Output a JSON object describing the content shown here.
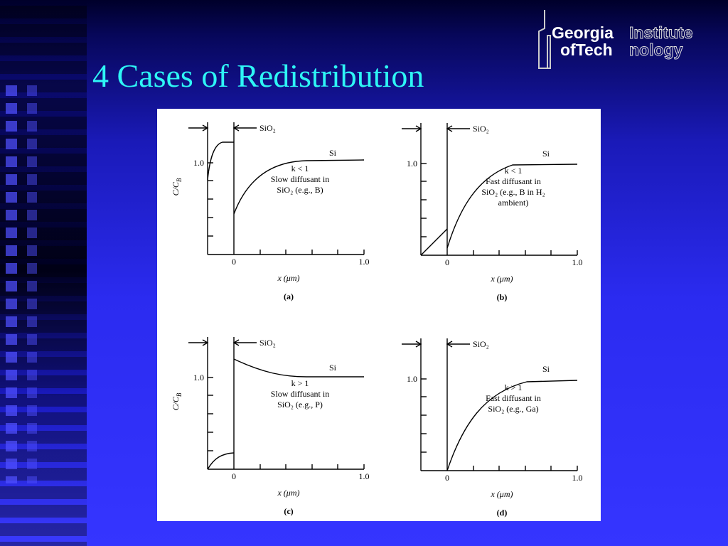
{
  "title": "4 Cases of Redistribution",
  "logo": {
    "georgia": "Georgia",
    "institute": "Institute",
    "of_tech": "ofTech",
    "nology": "nology"
  },
  "figure": {
    "panels": [
      {
        "label": "(a)",
        "y_label": "C/C",
        "y_label_sub": "B",
        "oxide": "SiO₂",
        "silicon": "Si",
        "y_tick": "1.0",
        "x_ticks": [
          "0",
          "1.0"
        ],
        "x_label": "x (μm)",
        "caption": [
          "k < 1",
          "Slow diffusant in",
          "SiO₂ (e.g., B)"
        ]
      },
      {
        "label": "(b)",
        "oxide": "SiO₂",
        "silicon": "Si",
        "y_tick": "1.0",
        "x_ticks": [
          "0",
          "1.0"
        ],
        "x_label": "x (μm)",
        "caption": [
          "k < 1",
          "Fast diffusant in",
          "SiO₂ (e.g., B in H₂",
          "ambient)"
        ]
      },
      {
        "label": "(c)",
        "y_label": "C/C",
        "y_label_sub": "B",
        "oxide": "SiO₂",
        "silicon": "Si",
        "y_tick": "1.0",
        "x_ticks": [
          "0",
          "1.0"
        ],
        "x_label": "x (μm)",
        "caption": [
          "k > 1",
          "Slow diffusant in",
          "SiO₂ (e.g., P)"
        ]
      },
      {
        "label": "(d)",
        "oxide": "SiO₂",
        "silicon": "Si",
        "y_tick": "1.0",
        "x_ticks": [
          "0",
          "1.0"
        ],
        "x_label": "x (μm)",
        "caption": [
          "k > 1",
          "Fast diffusant in",
          "SiO₂ (e.g., Ga)"
        ]
      }
    ]
  }
}
